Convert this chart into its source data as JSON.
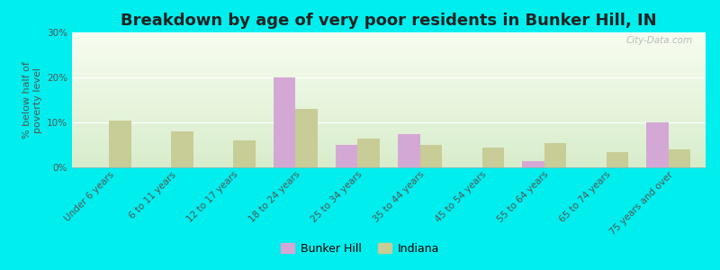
{
  "title": "Breakdown by age of very poor residents in Bunker Hill, IN",
  "ylabel": "% below half of\npoverty level",
  "categories": [
    "Under 6 years",
    "6 to 11 years",
    "12 to 17 years",
    "18 to 24 years",
    "25 to 34 years",
    "35 to 44 years",
    "45 to 54 years",
    "55 to 64 years",
    "65 to 74 years",
    "75 years and over"
  ],
  "bunker_hill": [
    0,
    0,
    0,
    20,
    5,
    7.5,
    0,
    1.5,
    0,
    10
  ],
  "indiana": [
    10.5,
    8,
    6,
    13,
    6.5,
    5,
    4.5,
    5.5,
    3.5,
    4
  ],
  "bunker_hill_color": "#d4a8d4",
  "indiana_color": "#c8cc96",
  "background_color": "#00eeee",
  "plot_bg_top": "#f8fdf0",
  "plot_bg_bottom": "#d8edcc",
  "ylim": [
    0,
    30
  ],
  "yticks": [
    0,
    10,
    20,
    30
  ],
  "ytick_labels": [
    "0%",
    "10%",
    "20%",
    "30%"
  ],
  "bar_width": 0.35,
  "title_fontsize": 13,
  "axis_label_fontsize": 8,
  "tick_fontsize": 7.5,
  "legend_fontsize": 9,
  "watermark": "City-Data.com"
}
